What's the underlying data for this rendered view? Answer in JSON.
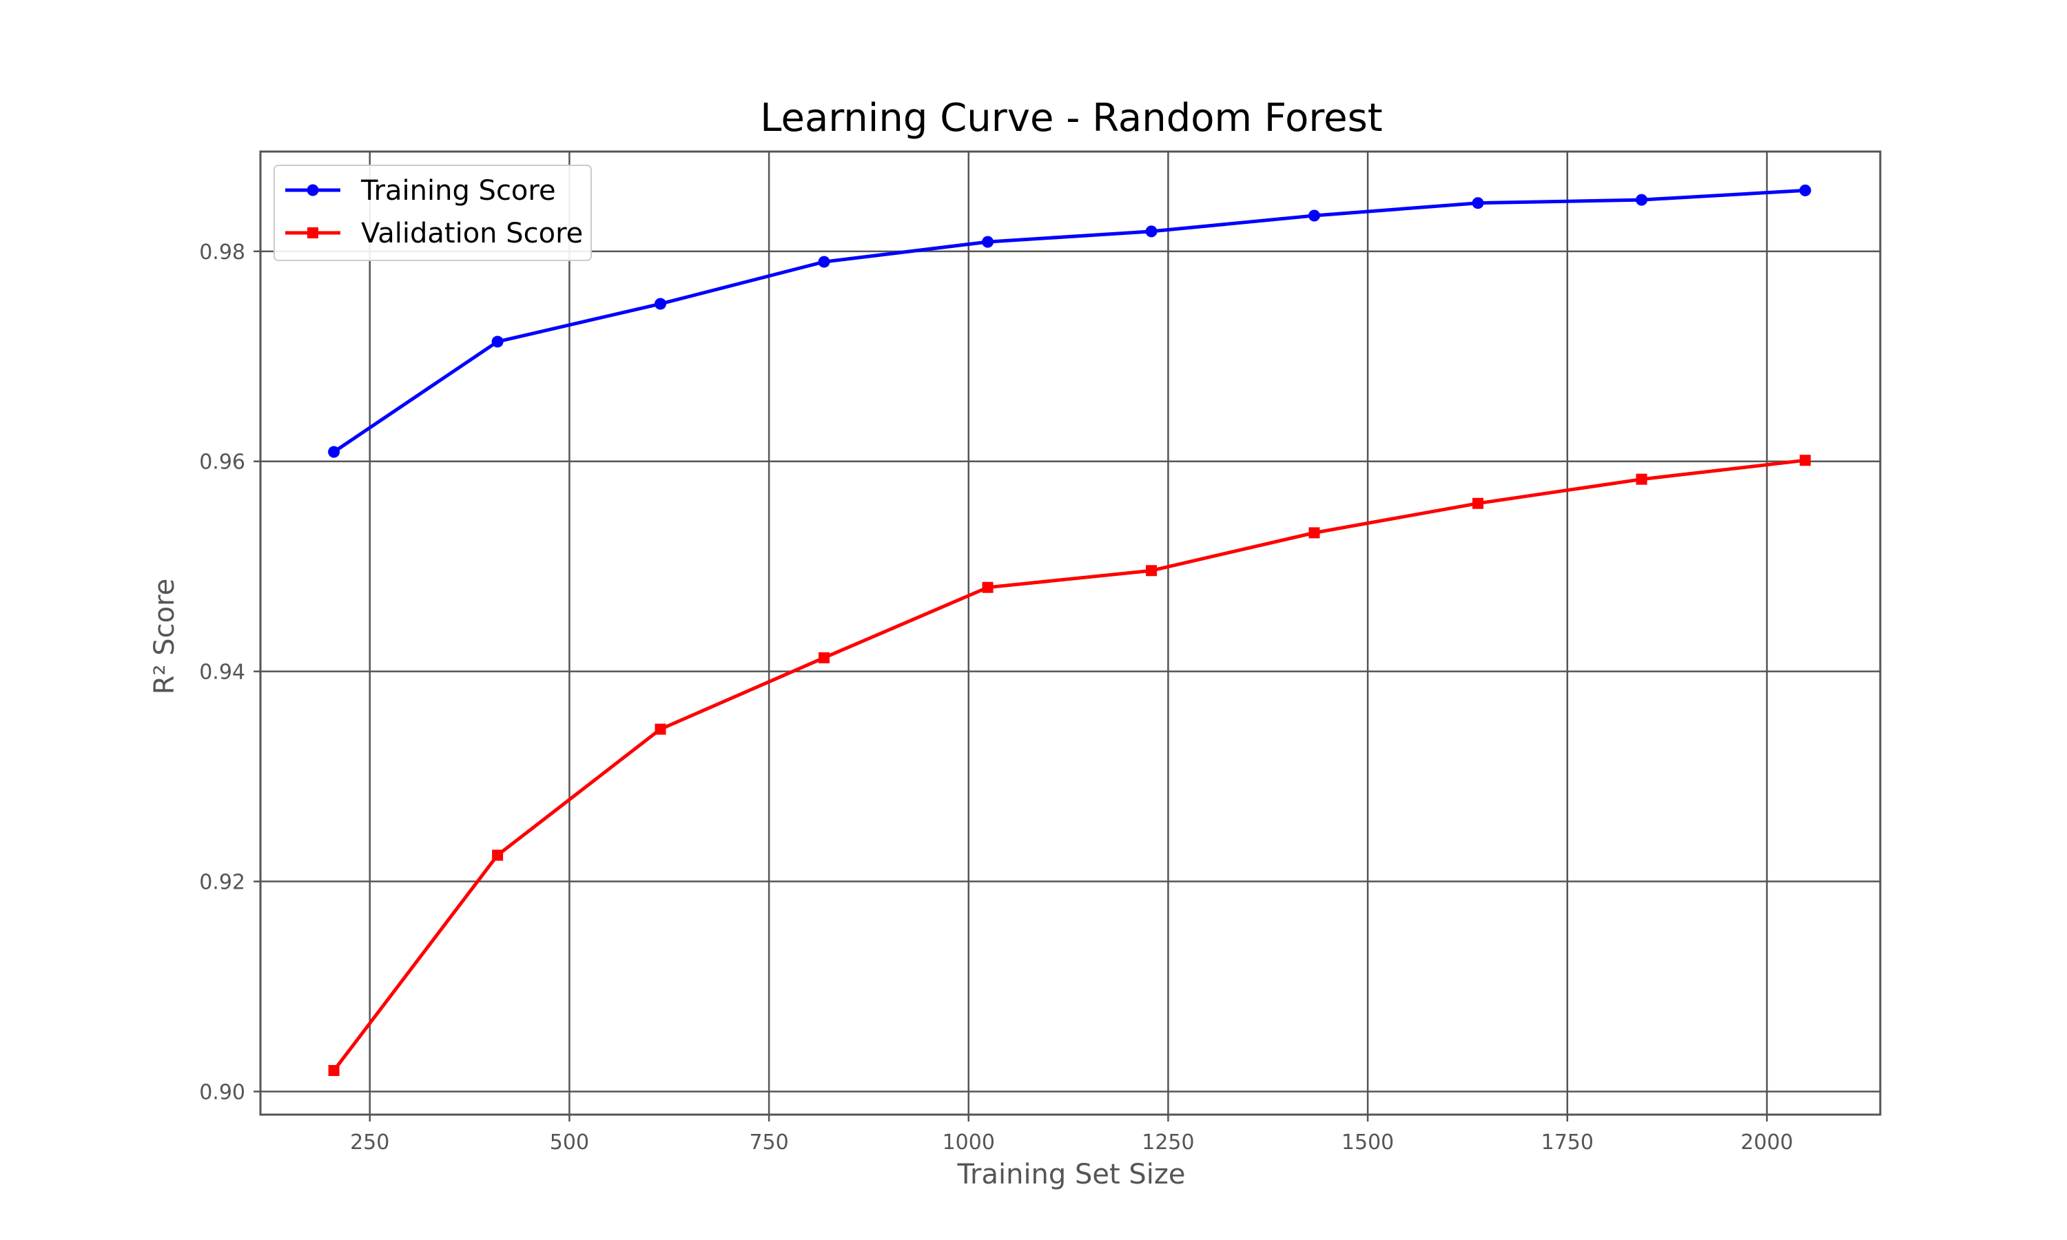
{
  "chart_data": {
    "type": "line",
    "title": "Learning Curve - Random Forest",
    "xlabel": "Training Set Size",
    "ylabel": "R² Score",
    "xlim": [
      113,
      2142
    ],
    "ylim": [
      0.8978,
      0.9895
    ],
    "x_ticks": [
      250,
      500,
      750,
      1000,
      1250,
      1500,
      1750,
      2000
    ],
    "x_tick_labels": [
      "250",
      "500",
      "750",
      "1000",
      "1250",
      "1500",
      "1750",
      "2000"
    ],
    "y_ticks": [
      0.9,
      0.92,
      0.94,
      0.96,
      0.98
    ],
    "y_tick_labels": [
      "0.90",
      "0.92",
      "0.94",
      "0.96",
      "0.98"
    ],
    "grid": true,
    "legend_position": "top-left",
    "x": [
      205,
      410,
      614,
      819,
      1024,
      1229,
      1433,
      1638,
      1843,
      2048
    ],
    "series": [
      {
        "name": "Training Score",
        "color": "#0000ff",
        "marker": "circle",
        "values": [
          0.9609,
          0.9714,
          0.975,
          0.979,
          0.9809,
          0.9819,
          0.9834,
          0.9846,
          0.9849,
          0.9858
        ]
      },
      {
        "name": "Validation Score",
        "color": "#ff0000",
        "marker": "square",
        "values": [
          0.902,
          0.9225,
          0.9345,
          0.9413,
          0.948,
          0.9496,
          0.9532,
          0.956,
          0.9583,
          0.9601
        ]
      }
    ]
  }
}
